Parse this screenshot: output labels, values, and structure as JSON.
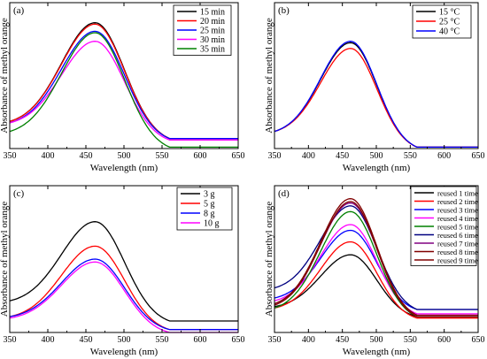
{
  "chart_data": [
    {
      "type": "line",
      "panel_label": "(a)",
      "xlabel": "Wavelength (nm)",
      "ylabel": "Absorbance of methyl orange",
      "xlim": [
        350,
        650
      ],
      "x_ticks": [
        "350",
        "400",
        "450",
        "500",
        "550",
        "600",
        "650"
      ],
      "ylim": [
        0,
        1
      ],
      "legend_position": "top-right",
      "series": [
        {
          "name": "15 min",
          "color": "#000000",
          "peak": 0.88,
          "start": 0.19,
          "baseline": 0.07
        },
        {
          "name": "20 min",
          "color": "#ff0000",
          "peak": 0.87,
          "start": 0.19,
          "baseline": 0.07
        },
        {
          "name": "25 min",
          "color": "#0000ff",
          "peak": 0.82,
          "start": 0.18,
          "baseline": 0.07
        },
        {
          "name": "30 min",
          "color": "#ff00ff",
          "peak": 0.75,
          "start": 0.18,
          "baseline": 0.06
        },
        {
          "name": "35 min",
          "color": "#008000",
          "peak": 0.81,
          "start": 0.12,
          "baseline": 0.01
        }
      ]
    },
    {
      "type": "line",
      "panel_label": "(b)",
      "xlabel": "Wavelength (nm)",
      "ylabel": "Absorbance of methyl orange",
      "xlim": [
        350,
        650
      ],
      "x_ticks": [
        "350",
        "400",
        "450",
        "500",
        "550",
        "600",
        "650"
      ],
      "ylim": [
        0,
        1
      ],
      "legend_position": "top-right",
      "series": [
        {
          "name": "15 °C",
          "color": "#000000",
          "peak": 0.74,
          "start": 0.12,
          "baseline": 0.01
        },
        {
          "name": "25 °C",
          "color": "#ff0000",
          "peak": 0.7,
          "start": 0.12,
          "baseline": 0.01
        },
        {
          "name": "40 °C",
          "color": "#0000ff",
          "peak": 0.75,
          "start": 0.12,
          "baseline": 0.01
        }
      ]
    },
    {
      "type": "line",
      "panel_label": "(c)",
      "xlabel": "Wavelength (nm)",
      "ylabel": "Absorbance of methyl orange",
      "xlim": [
        350,
        650
      ],
      "x_ticks": [
        "350",
        "400",
        "450",
        "500",
        "550",
        "600",
        "650"
      ],
      "ylim": [
        0,
        1
      ],
      "legend_position": "top-right",
      "series": [
        {
          "name": "3 g",
          "color": "#000000",
          "peak": 0.77,
          "start": 0.22,
          "baseline": 0.08
        },
        {
          "name": "5 g",
          "color": "#ff0000",
          "peak": 0.6,
          "start": 0.11,
          "baseline": 0.02
        },
        {
          "name": "8 g",
          "color": "#0000ff",
          "peak": 0.51,
          "start": 0.11,
          "baseline": 0.02
        },
        {
          "name": "10 g",
          "color": "#ff00ff",
          "peak": 0.49,
          "start": 0.1,
          "baseline": 0.0
        }
      ]
    },
    {
      "type": "line",
      "panel_label": "(d)",
      "xlabel": "Wavelength (nm)",
      "ylabel": "Absorbance of methyl orange",
      "xlim": [
        350,
        650
      ],
      "x_ticks": [
        "350",
        "400",
        "450",
        "500",
        "550",
        "600",
        "650"
      ],
      "ylim": [
        0,
        1
      ],
      "legend_position": "top-right",
      "series": [
        {
          "name": "reused 1 time",
          "color": "#000000",
          "peak": 0.54,
          "start": 0.18,
          "baseline": 0.11
        },
        {
          "name": "reused 2 time",
          "color": "#ff0000",
          "peak": 0.63,
          "start": 0.17,
          "baseline": 0.1
        },
        {
          "name": "reused 3 time",
          "color": "#0000ff",
          "peak": 0.71,
          "start": 0.24,
          "baseline": 0.16
        },
        {
          "name": "reused 4 time",
          "color": "#ff00ff",
          "peak": 0.75,
          "start": 0.22,
          "baseline": 0.13
        },
        {
          "name": "reused 5 time",
          "color": "#008000",
          "peak": 0.84,
          "start": 0.17,
          "baseline": 0.11
        },
        {
          "name": "reused 6 time",
          "color": "#000080",
          "peak": 0.88,
          "start": 0.31,
          "baseline": 0.16
        },
        {
          "name": "reused 7 time",
          "color": "#800080",
          "peak": 0.9,
          "start": 0.2,
          "baseline": 0.12
        },
        {
          "name": "reused 8 time",
          "color": "#800000",
          "peak": 0.91,
          "start": 0.19,
          "baseline": 0.11
        },
        {
          "name": "reused 9 time",
          "color": "#800000",
          "peak": 0.93,
          "start": 0.2,
          "baseline": 0.12
        }
      ]
    }
  ]
}
